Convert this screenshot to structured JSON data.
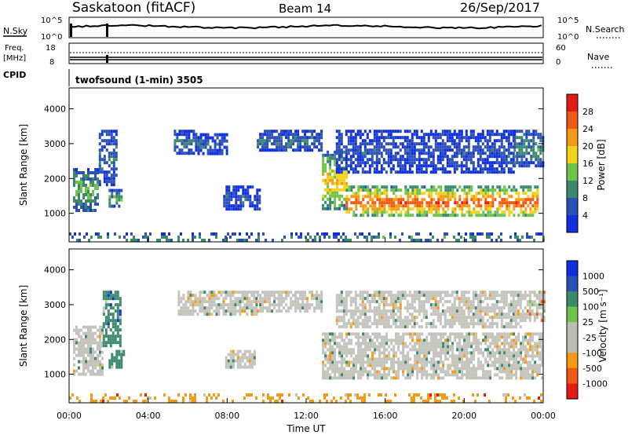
{
  "header": {
    "station": "Saskatoon (fitACF)",
    "beam": "Beam 14",
    "date": "26/Sep/2017"
  },
  "top_panels": {
    "nsky_label": "N.Sky",
    "nsky_ticks": [
      "10^5",
      "10^0"
    ],
    "nsearch_label": "N.Search",
    "nsearch_ticks": [
      "10^5",
      "10^0"
    ],
    "freq_label": "Freq.",
    "freq_unit": "[MHz]",
    "freq_ticks": [
      "18",
      "8"
    ],
    "nave_label": "Nave",
    "nave_ticks": [
      "60",
      "0"
    ],
    "cpid_label": "CPID",
    "cpid_value": "twofsound (1-min) 3505"
  },
  "colors": {
    "power": [
      "#1030e0",
      "#2d4fb8",
      "#3b8a6a",
      "#6ec34a",
      "#f2d21a",
      "#f59a14",
      "#ee5a14",
      "#e41b12"
    ],
    "velocity": [
      "#e41b12",
      "#ee5a14",
      "#f59a14",
      "#bcbcb2",
      "#bcbcb2",
      "#6ec34a",
      "#3b8a6a",
      "#2d4fb8",
      "#1030e0"
    ],
    "ground_scatter": "#c4c4bc"
  },
  "chart_data": [
    {
      "type": "heatmap",
      "name": "power",
      "xlabel": "",
      "ylabel": "Slant Range [km]",
      "y_ticks": [
        "1000",
        "2000",
        "3000",
        "4000"
      ],
      "ylim": [
        180,
        4600
      ],
      "colorbar": {
        "label": "Power [dB]",
        "ticks": [
          "4",
          "8",
          "12",
          "16",
          "20",
          "24",
          "28"
        ],
        "range": [
          0,
          32
        ]
      },
      "regions": [
        {
          "t0": 0.2,
          "t1": 1.5,
          "r0": 1100,
          "r1": 2300,
          "level": 12
        },
        {
          "t0": 1.5,
          "t1": 2.4,
          "r0": 1800,
          "r1": 3400,
          "level": 7
        },
        {
          "t0": 2.0,
          "t1": 2.7,
          "r0": 1200,
          "r1": 1700,
          "level": 11
        },
        {
          "t0": 5.3,
          "t1": 6.6,
          "r0": 2700,
          "r1": 3400,
          "level": 7
        },
        {
          "t0": 6.5,
          "t1": 8.0,
          "r0": 2700,
          "r1": 3300,
          "level": 6
        },
        {
          "t0": 7.8,
          "t1": 9.7,
          "r0": 1100,
          "r1": 1800,
          "level": 6
        },
        {
          "t0": 9.5,
          "t1": 12.8,
          "r0": 2800,
          "r1": 3400,
          "level": 7
        },
        {
          "t0": 12.8,
          "t1": 14.0,
          "r0": 1100,
          "r1": 2800,
          "level": 18
        },
        {
          "t0": 14.0,
          "t1": 23.7,
          "r0": 900,
          "r1": 1800,
          "level": 23
        },
        {
          "t0": 13.5,
          "t1": 22.5,
          "r0": 2200,
          "r1": 3400,
          "level": 5
        },
        {
          "t0": 22.5,
          "t1": 24.0,
          "r0": 2400,
          "r1": 3400,
          "level": 9
        },
        {
          "t0": 0.0,
          "t1": 24.0,
          "r0": 200,
          "r1": 450,
          "level": 10
        }
      ]
    },
    {
      "type": "heatmap",
      "name": "velocity",
      "xlabel": "Time UT",
      "ylabel": "Slant Range [km]",
      "x_ticks": [
        "00:00",
        "04:00",
        "08:00",
        "12:00",
        "16:00",
        "20:00",
        "00:00"
      ],
      "xlim": [
        0,
        24
      ],
      "y_ticks": [
        "1000",
        "2000",
        "3000",
        "4000"
      ],
      "ylim": [
        180,
        4600
      ],
      "colorbar": {
        "label": "Velocity [m s⁻¹]",
        "ticks": [
          "-1000",
          "-500",
          "-100",
          "-25",
          "25",
          "100",
          "500",
          "1000"
        ]
      },
      "regions": [
        {
          "t0": 0.2,
          "t1": 1.7,
          "r0": 1000,
          "r1": 2400,
          "vclass": 4
        },
        {
          "t0": 1.7,
          "t1": 2.6,
          "r0": 1800,
          "r1": 3400,
          "vclass": 6
        },
        {
          "t0": 2.0,
          "t1": 2.8,
          "r0": 1200,
          "r1": 1700,
          "vclass": 6
        },
        {
          "t0": 5.5,
          "t1": 9.5,
          "r0": 2700,
          "r1": 3400,
          "vclass": 4
        },
        {
          "t0": 9.5,
          "t1": 12.8,
          "r0": 2800,
          "r1": 3400,
          "vclass": 4
        },
        {
          "t0": 7.9,
          "t1": 9.4,
          "r0": 1200,
          "r1": 1700,
          "vclass": 4
        },
        {
          "t0": 12.8,
          "t1": 24.0,
          "r0": 900,
          "r1": 2200,
          "vclass": 4
        },
        {
          "t0": 13.5,
          "t1": 22.8,
          "r0": 2400,
          "r1": 3400,
          "vclass": 4
        },
        {
          "t0": 22.8,
          "t1": 24.0,
          "r0": 2500,
          "r1": 3400,
          "vclass": 3
        },
        {
          "t0": 0.0,
          "t1": 24.0,
          "r0": 200,
          "r1": 450,
          "vclass": 2
        }
      ]
    }
  ]
}
